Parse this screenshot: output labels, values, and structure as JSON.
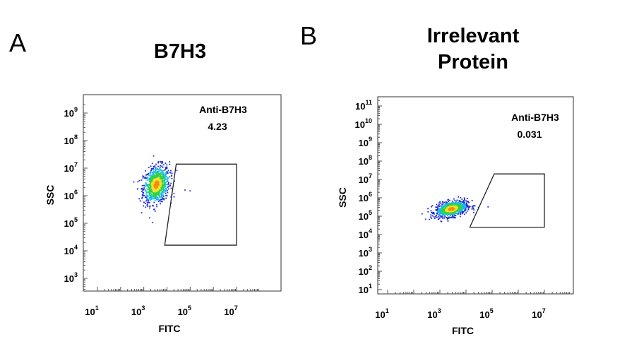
{
  "chart_data": [
    {
      "type": "scatter",
      "panel_label": "A",
      "title": "B7H3",
      "xlabel": "FITC",
      "ylabel": "SSC",
      "x_scale": "log",
      "y_scale": "log",
      "xlim": [
        10,
        100000000
      ],
      "ylim": [
        100,
        2000000000
      ],
      "x_tick_labels": [
        {
          "base": "10",
          "exp": "1",
          "value": 10
        },
        {
          "base": "10",
          "exp": "3",
          "value": 1000
        },
        {
          "base": "10",
          "exp": "5",
          "value": 100000
        },
        {
          "base": "10",
          "exp": "7",
          "value": 10000000
        }
      ],
      "y_tick_labels": [
        {
          "base": "10",
          "exp": "3",
          "value": 1000
        },
        {
          "base": "10",
          "exp": "4",
          "value": 10000
        },
        {
          "base": "10",
          "exp": "5",
          "value": 100000
        },
        {
          "base": "10",
          "exp": "6",
          "value": 1000000
        },
        {
          "base": "10",
          "exp": "7",
          "value": 10000000
        },
        {
          "base": "10",
          "exp": "8",
          "value": 100000000
        },
        {
          "base": "10",
          "exp": "9",
          "value": 1000000000
        }
      ],
      "population": {
        "center_x": 3500,
        "center_y": 2500000,
        "spread_x_decades": 0.28,
        "spread_y_decades": 0.33,
        "outliers": [
          [
            20000,
            1200000
          ],
          [
            60000,
            1600000
          ],
          [
            100000,
            1500000
          ],
          [
            15000,
            900000
          ]
        ]
      },
      "gate": {
        "name": "Anti-B7H3",
        "percent": "4.23",
        "vertices": [
          [
            25000,
            14000000
          ],
          [
            10000000,
            14000000
          ],
          [
            10000000,
            16000
          ],
          [
            8000,
            16000
          ]
        ]
      },
      "grid": false
    },
    {
      "type": "scatter",
      "panel_label": "B",
      "title": "Irrelevant Protein",
      "title_lines": [
        "Irrelevant",
        "Protein"
      ],
      "xlabel": "FITC",
      "ylabel": "SSC",
      "x_scale": "log",
      "y_scale": "log",
      "xlim": [
        10,
        100000000
      ],
      "ylim": [
        10,
        200000000000
      ],
      "x_tick_labels": [
        {
          "base": "10",
          "exp": "1",
          "value": 10
        },
        {
          "base": "10",
          "exp": "3",
          "value": 1000
        },
        {
          "base": "10",
          "exp": "5",
          "value": 100000
        },
        {
          "base": "10",
          "exp": "7",
          "value": 10000000
        }
      ],
      "y_tick_labels": [
        {
          "base": "10",
          "exp": "1",
          "value": 10
        },
        {
          "base": "10",
          "exp": "2",
          "value": 100
        },
        {
          "base": "10",
          "exp": "3",
          "value": 1000
        },
        {
          "base": "10",
          "exp": "4",
          "value": 10000
        },
        {
          "base": "10",
          "exp": "5",
          "value": 100000
        },
        {
          "base": "10",
          "exp": "6",
          "value": 1000000
        },
        {
          "base": "10",
          "exp": "7",
          "value": 10000000
        },
        {
          "base": "10",
          "exp": "8",
          "value": 100000000
        },
        {
          "base": "10",
          "exp": "9",
          "value": 1000000000
        },
        {
          "base": "10",
          "exp": "10",
          "value": 10000000000
        },
        {
          "base": "10",
          "exp": "11",
          "value": 100000000000
        }
      ],
      "population": {
        "center_x": 2800,
        "center_y": 250000,
        "spread_x_decades": 0.3,
        "spread_y_decades": 0.2,
        "outliers": [
          [
            30000,
            300000
          ],
          [
            70000,
            320000
          ],
          [
            20000,
            220000
          ]
        ]
      },
      "gate": {
        "name": "Anti-B7H3",
        "percent": "0.031",
        "vertices": [
          [
            120000,
            20000000
          ],
          [
            10000000,
            20000000
          ],
          [
            10000000,
            25000
          ],
          [
            14000,
            25000
          ]
        ]
      },
      "grid": false
    }
  ]
}
